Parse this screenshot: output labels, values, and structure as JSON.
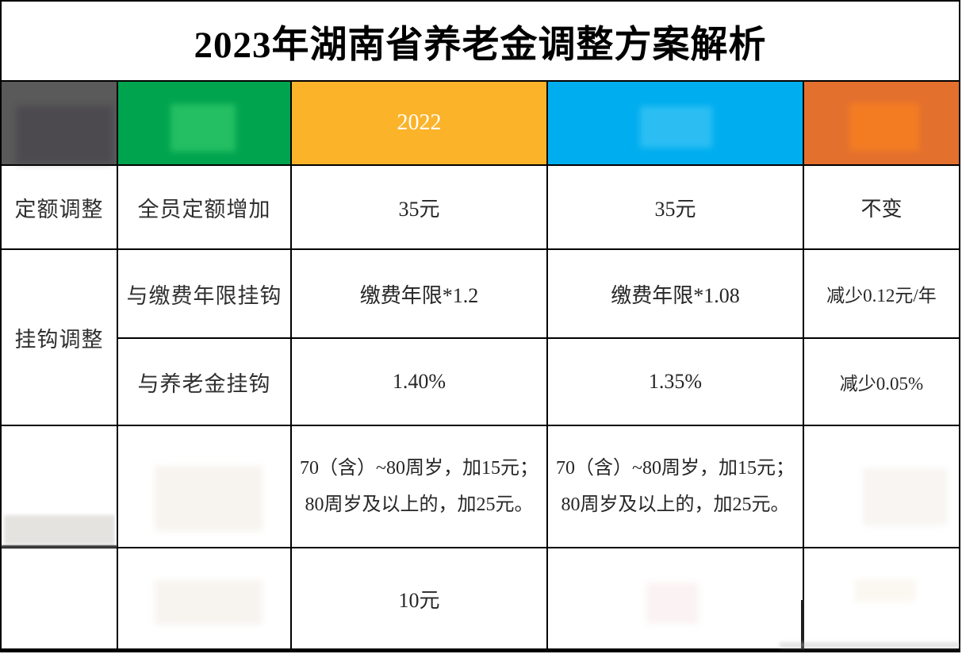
{
  "title": "2023年湖南省养老金调整方案解析",
  "header": {
    "col1": {
      "label": "",
      "color": "#5a5a5a"
    },
    "col2": {
      "label": "",
      "color": "#00a44f"
    },
    "col3": {
      "label": "2022",
      "color": "#fbb329"
    },
    "col4": {
      "label": "",
      "color": "#00aeef"
    },
    "col5": {
      "label": "",
      "color": "#e4702e"
    }
  },
  "body": {
    "row1": {
      "category": "定额调整",
      "item": "全员定额增加",
      "y2022": "35元",
      "y2023": "35元",
      "change": "不变"
    },
    "row2": {
      "category": "挂钩调整",
      "item": "与缴费年限挂钩",
      "y2022": "缴费年限*1.2",
      "y2023": "缴费年限*1.08",
      "change": "减少0.12元/年"
    },
    "row3": {
      "item": "与养老金挂钩",
      "y2022": "1.40%",
      "y2023": "1.35%",
      "change": "减少0.05%"
    },
    "row4": {
      "y2022_line1": "70（含）~80周岁，加15元；",
      "y2022_line2": "80周岁及以上的，加25元。",
      "y2023_line1": "70（含）~80周岁，加15元；",
      "y2023_line2": "80周岁及以上的，加25元。"
    },
    "row5": {
      "y2022": "10元"
    }
  }
}
